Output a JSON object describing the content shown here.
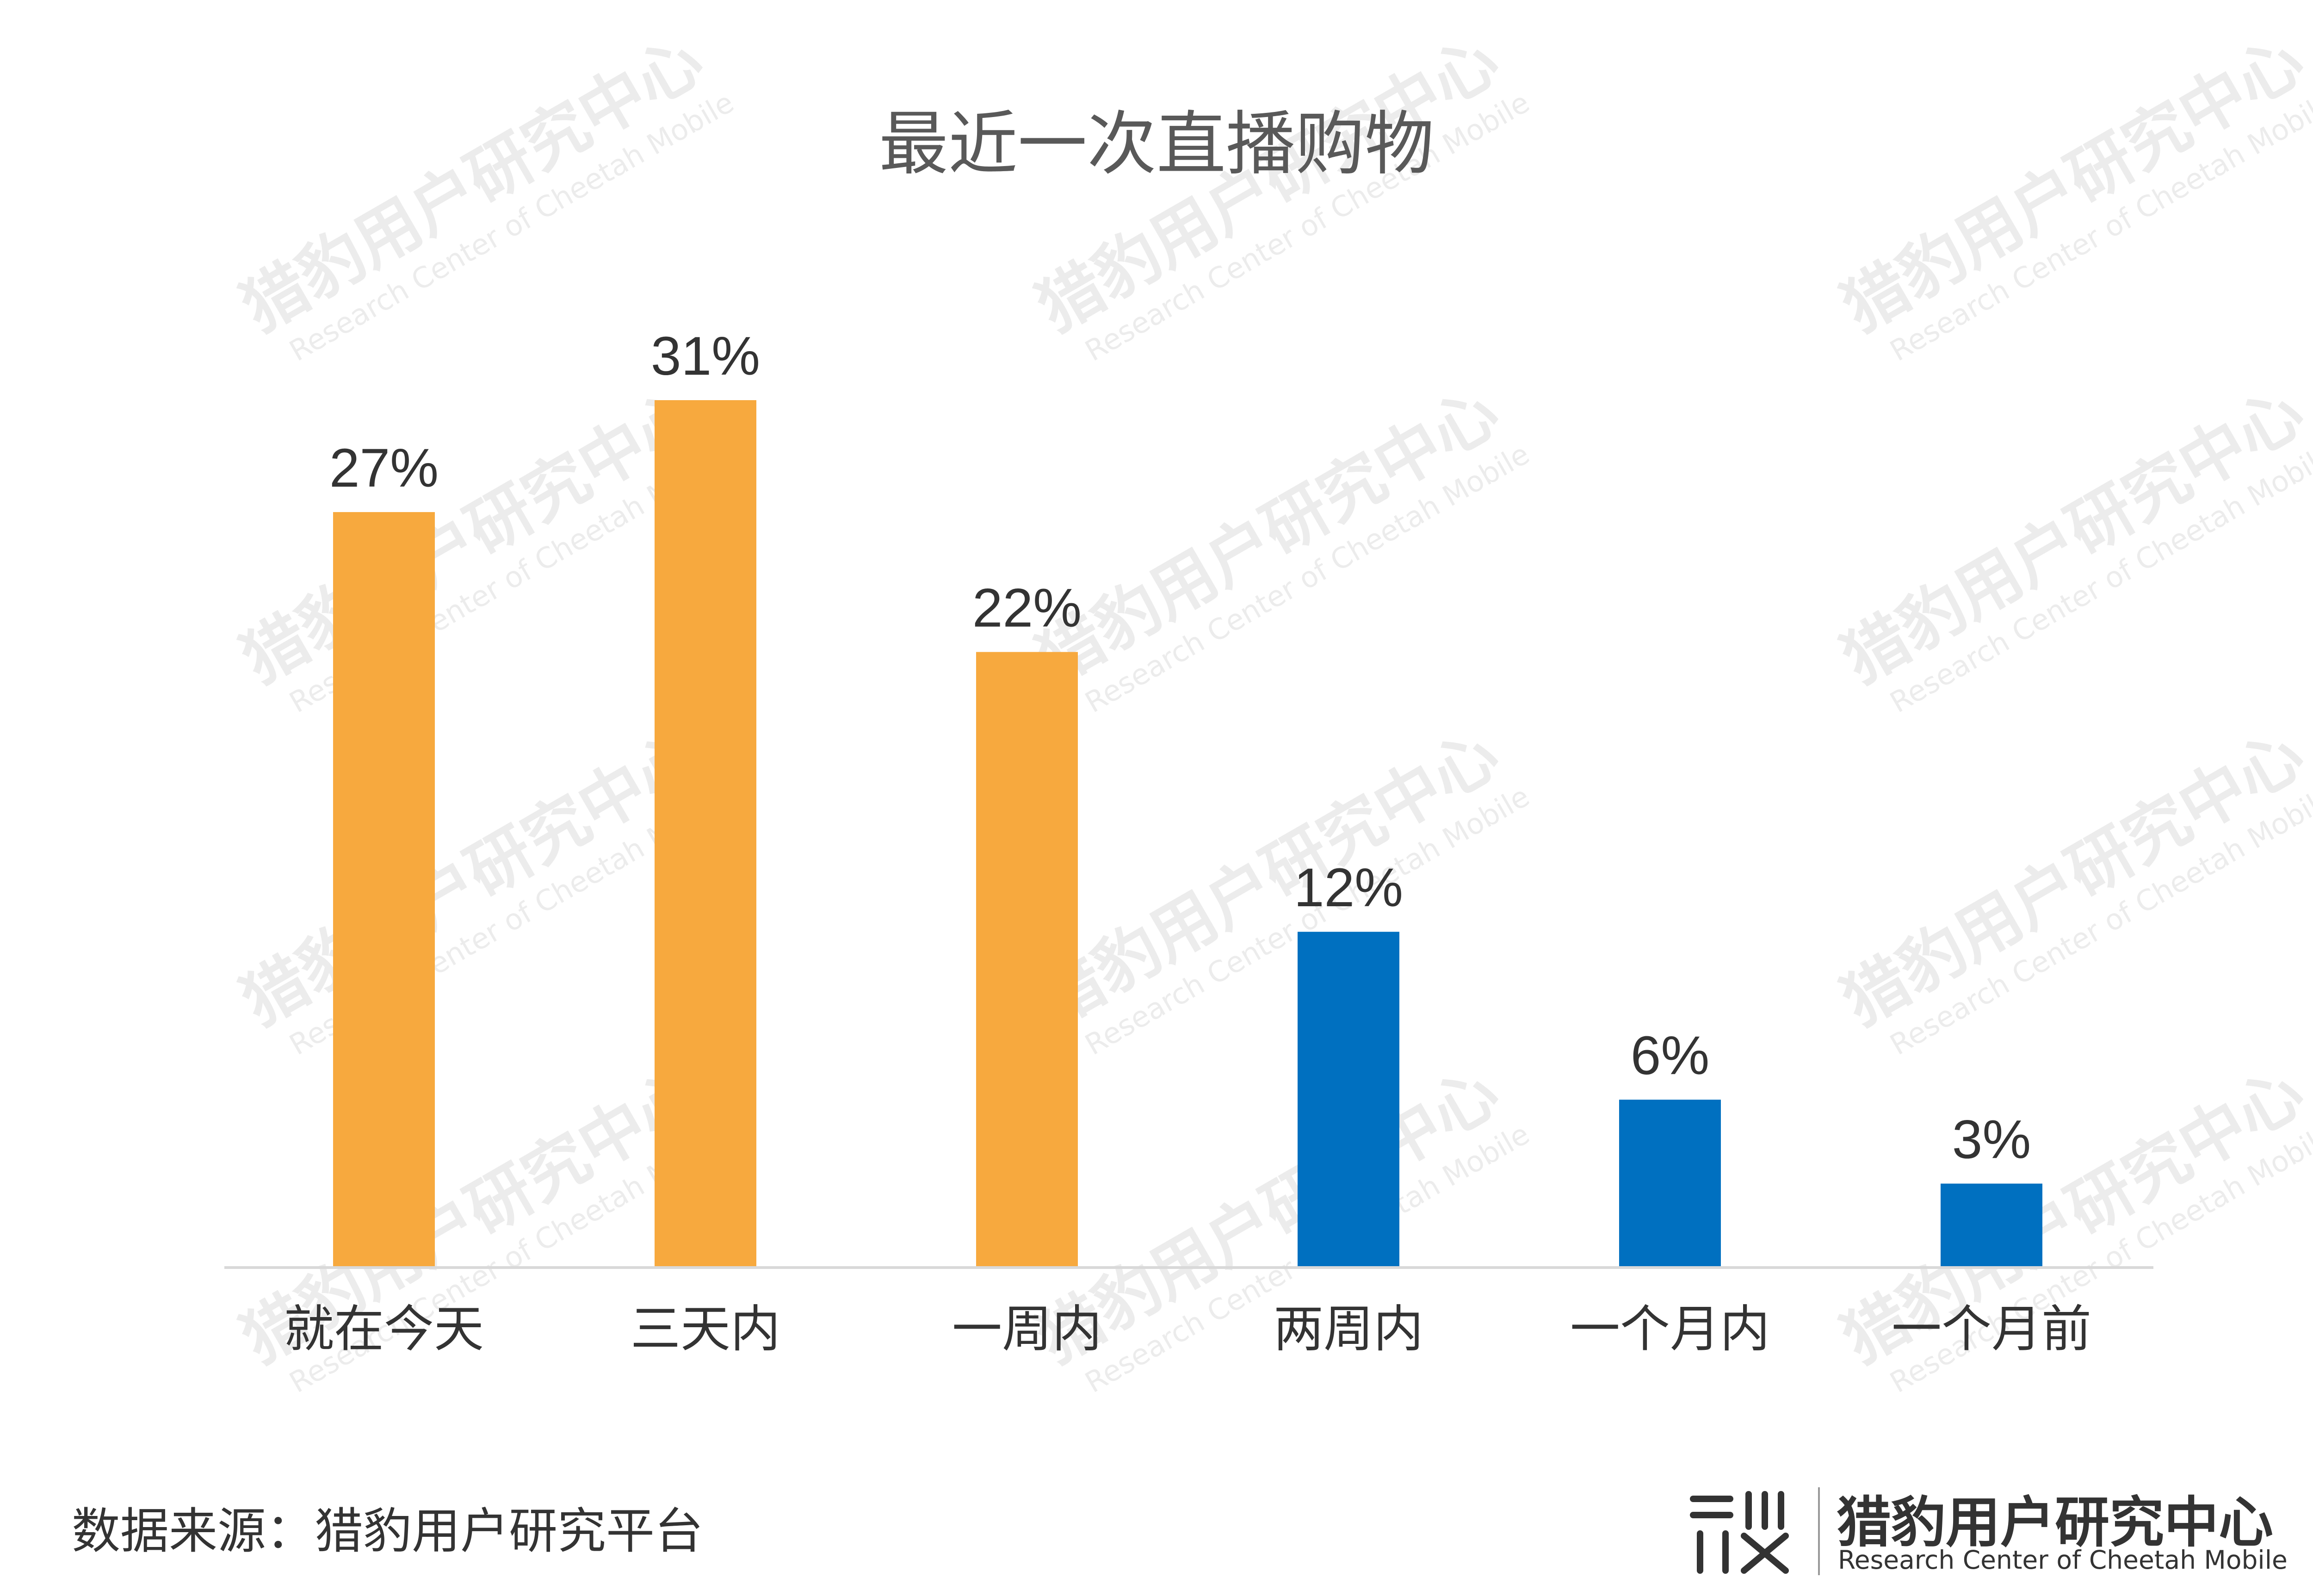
{
  "title": "最近一次直播购物",
  "source": "数据来源：猎豹用户研究平台",
  "logo": {
    "name": "猎豹用户研究中心",
    "subtitle": "Research Center of Cheetah Mobile",
    "watermark_name": "猎豹用户研究中心",
    "watermark_sub": "Research Center of Cheetah Mobile"
  },
  "colors": {
    "highlight": "#F7A93E",
    "normal": "#0070C0",
    "axis": "#D9D9D9",
    "label": "#333333"
  },
  "chart_data": {
    "type": "bar",
    "title": "最近一次直播购物",
    "categories": [
      "就在今天",
      "三天内",
      "一周内",
      "两周内",
      "一个月内",
      "一个月前"
    ],
    "values": [
      27,
      31,
      22,
      12,
      6,
      3
    ],
    "value_labels": [
      "27%",
      "31%",
      "22%",
      "12%",
      "6%",
      "3%"
    ],
    "bar_colors": [
      "#F7A93E",
      "#F7A93E",
      "#F7A93E",
      "#0070C0",
      "#0070C0",
      "#0070C0"
    ],
    "unit": "%",
    "ylim": [
      0,
      31
    ],
    "grid": false,
    "legend": "none"
  }
}
